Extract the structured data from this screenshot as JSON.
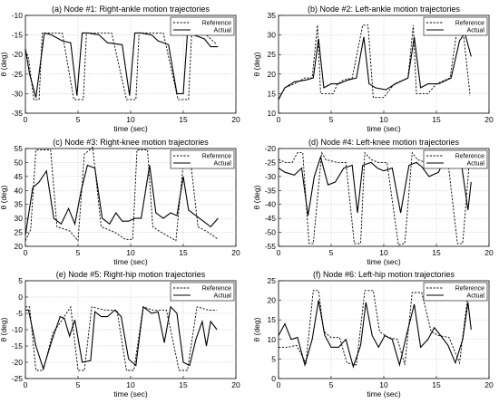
{
  "chart_data": [
    {
      "type": "line",
      "title": "(a) Node #1: Right-ankle motion trajectories",
      "xlabel": "time (sec)",
      "ylabel": "θ (deg)",
      "xlim": [
        0,
        20
      ],
      "ylim": [
        -35,
        -10
      ],
      "xticks": [
        "0",
        "5",
        "10",
        "15",
        "20"
      ],
      "yticks": [
        "-35",
        "-30",
        "-25",
        "-20",
        "-15",
        "-10"
      ],
      "grid": true,
      "legend_position": "top-right",
      "series": [
        {
          "name": "Reference",
          "style": "dashed",
          "x": [
            0,
            0.3,
            0.8,
            1.3,
            1.6,
            2.5,
            3.5,
            4.6,
            5.0,
            5.5,
            5.8,
            7.0,
            8.2,
            9.6,
            10.0,
            10.5,
            10.8,
            12.0,
            13.1,
            14.5,
            15.0,
            15.5,
            15.8,
            17.0,
            18.2
          ],
          "y": [
            -19,
            -21,
            -31.5,
            -31.5,
            -14.5,
            -14.5,
            -14.5,
            -31.5,
            -31.5,
            -31.5,
            -14.5,
            -14.5,
            -14.5,
            -31.5,
            -31.5,
            -31.5,
            -14.5,
            -14.5,
            -14.5,
            -31.5,
            -31.5,
            -31.5,
            -14.5,
            -14.5,
            -17.5
          ]
        },
        {
          "name": "Actual",
          "style": "solid",
          "x": [
            0,
            0.4,
            1.0,
            1.8,
            2.5,
            3.5,
            4.3,
            4.9,
            5.4,
            6.0,
            7.0,
            7.8,
            9.2,
            9.9,
            10.4,
            11.0,
            12.0,
            12.6,
            13.6,
            14.4,
            15.0,
            15.4,
            16.0,
            17.0,
            17.6,
            18.3
          ],
          "y": [
            -18.5,
            -25,
            -31,
            -14.5,
            -15,
            -16.5,
            -17,
            -30.5,
            -14.5,
            -14.5,
            -15,
            -17,
            -17.5,
            -30.5,
            -14.5,
            -14.5,
            -15,
            -16.5,
            -17.5,
            -30,
            -30,
            -14.5,
            -15,
            -16,
            -18,
            -18
          ]
        }
      ]
    },
    {
      "type": "line",
      "title": "(b) Node #2: Left-ankle motion trajectories",
      "xlabel": "time (sec)",
      "ylabel": "θ (deg)",
      "xlim": [
        0,
        20
      ],
      "ylim": [
        10,
        35
      ],
      "xticks": [
        "0",
        "5",
        "10",
        "15",
        "20"
      ],
      "yticks": [
        "10",
        "15",
        "20",
        "25",
        "30",
        "35"
      ],
      "grid": true,
      "legend_position": "top-right",
      "series": [
        {
          "name": "Reference",
          "style": "dashed",
          "x": [
            0,
            0.6,
            1.5,
            2.5,
            3.2,
            3.7,
            4.0,
            5.2,
            5.6,
            6.2,
            7.0,
            8.0,
            8.5,
            9.0,
            10.0,
            11.0,
            12.3,
            12.8,
            13.1,
            14.2,
            15.0,
            16.3,
            17.0,
            17.5,
            18.2
          ],
          "y": [
            13.5,
            16.5,
            17.5,
            19,
            19,
            32.5,
            15,
            15,
            17.5,
            18.5,
            19,
            32.5,
            32.5,
            14,
            14,
            17.5,
            19,
            32.5,
            15,
            15,
            17.5,
            19,
            32,
            32,
            14.5
          ]
        },
        {
          "name": "Actual",
          "style": "solid",
          "x": [
            0,
            0.6,
            1.5,
            2.6,
            3.3,
            3.8,
            4.3,
            5.0,
            5.7,
            6.6,
            7.4,
            8.1,
            8.6,
            9.2,
            10.2,
            11.1,
            12.3,
            12.9,
            13.5,
            14.2,
            15.2,
            16.4,
            17.2,
            17.7,
            18.3
          ],
          "y": [
            13.5,
            16.5,
            18,
            18.5,
            19,
            29,
            16.5,
            17.5,
            17.5,
            18.5,
            19,
            29.5,
            17.5,
            16.5,
            16,
            17.5,
            19,
            29.5,
            16.5,
            17.5,
            17.5,
            19,
            28.5,
            30.5,
            24.5
          ]
        }
      ]
    },
    {
      "type": "line",
      "title": "(c) Node #3: Right-knee motion trajectories",
      "xlabel": "time (sec)",
      "ylabel": "θ (deg)",
      "xlim": [
        0,
        20
      ],
      "ylim": [
        20,
        55
      ],
      "xticks": [
        "0",
        "5",
        "10",
        "15",
        "20"
      ],
      "yticks": [
        "20",
        "25",
        "30",
        "35",
        "40",
        "45",
        "50",
        "55"
      ],
      "grid": true,
      "legend_position": "top-right",
      "series": [
        {
          "name": "Reference",
          "style": "dashed",
          "x": [
            0,
            0.5,
            1.0,
            2.4,
            3.0,
            4.2,
            5.0,
            5.6,
            6.4,
            7.2,
            8.5,
            9.5,
            10.2,
            10.6,
            11.6,
            12.1,
            12.7,
            14.3,
            15.1,
            15.6,
            16.4,
            17.4,
            18.3
          ],
          "y": [
            22,
            26,
            54.5,
            54.5,
            27,
            25.5,
            22,
            53,
            55.5,
            27,
            25,
            22.5,
            22.5,
            54.5,
            54.5,
            27,
            25.5,
            22,
            53.5,
            53.5,
            27,
            25,
            22.5
          ]
        },
        {
          "name": "Actual",
          "style": "solid",
          "x": [
            0,
            0.7,
            1.3,
            2.0,
            2.7,
            3.4,
            4.1,
            4.7,
            5.3,
            5.9,
            6.6,
            7.3,
            8.0,
            8.6,
            9.2,
            9.8,
            10.4,
            11.0,
            11.8,
            12.4,
            13.1,
            13.8,
            14.4,
            15.0,
            15.5,
            16.2,
            16.9,
            17.6,
            18.3
          ],
          "y": [
            24,
            41,
            43,
            47,
            30,
            28,
            33.5,
            28,
            40,
            49,
            48,
            30,
            28,
            32,
            29,
            29,
            30,
            30,
            49,
            32,
            30,
            32,
            31,
            45,
            33,
            31,
            29,
            27,
            30
          ]
        }
      ]
    },
    {
      "type": "line",
      "title": "(d) Node #4: Left-knee motion trajectories",
      "xlabel": "time (sec)",
      "ylabel": "θ (deg)",
      "xlim": [
        0,
        20
      ],
      "ylim": [
        -55,
        -20
      ],
      "xticks": [
        "0",
        "5",
        "10",
        "15",
        "20"
      ],
      "yticks": [
        "-55",
        "-50",
        "-45",
        "-40",
        "-35",
        "-30",
        "-25",
        "-20"
      ],
      "grid": true,
      "legend_position": "top-right",
      "series": [
        {
          "name": "Reference",
          "style": "dashed",
          "x": [
            0,
            0.7,
            1.3,
            1.8,
            2.3,
            2.9,
            3.3,
            4.1,
            4.5,
            5.6,
            6.4,
            7.2,
            7.8,
            8.2,
            8.8,
            9.5,
            10.3,
            11.4,
            12.0,
            12.7,
            13.2,
            14.0,
            15.0,
            16.0,
            17.0,
            17.5,
            18.2
          ],
          "y": [
            -24,
            -25,
            -25,
            -21.5,
            -21.5,
            -54,
            -54,
            -21.5,
            -24,
            -25,
            -25,
            -54,
            -54,
            -21.5,
            -24,
            -25,
            -25,
            -54.5,
            -54,
            -21.5,
            -24,
            -25,
            -25,
            -21.5,
            -54,
            -54,
            -21.5
          ]
        },
        {
          "name": "Actual",
          "style": "solid",
          "x": [
            0,
            0.6,
            1.5,
            2.2,
            2.8,
            3.4,
            4.0,
            4.7,
            5.4,
            6.2,
            7.0,
            7.5,
            8.0,
            8.8,
            9.4,
            10.0,
            10.8,
            11.6,
            12.4,
            13.1,
            13.6,
            14.3,
            15.2,
            16.0,
            16.6,
            17.4,
            18.0,
            18.3
          ],
          "y": [
            -27,
            -28.5,
            -29.5,
            -27,
            -44,
            -30,
            -23,
            -33,
            -32,
            -27,
            -26,
            -43,
            -26,
            -25,
            -27,
            -28,
            -27,
            -43,
            -26,
            -25,
            -26.5,
            -30,
            -28.5,
            -22,
            -27,
            -26,
            -42,
            -32
          ]
        }
      ]
    },
    {
      "type": "line",
      "title": "(e) Node #5: Right-hip motion trajectories",
      "xlabel": "time (sec)",
      "ylabel": "θ (deg)",
      "xlim": [
        0,
        20
      ],
      "ylim": [
        -25,
        5
      ],
      "xticks": [
        "0",
        "5",
        "10",
        "15",
        "20"
      ],
      "yticks": [
        "-25",
        "-20",
        "-15",
        "-10",
        "-5",
        "0",
        "5"
      ],
      "grid": true,
      "legend_position": "top-right",
      "series": [
        {
          "name": "Reference",
          "style": "dashed",
          "x": [
            0,
            0.4,
            1.0,
            1.7,
            2.6,
            3.5,
            4.3,
            5.0,
            5.6,
            6.3,
            7.5,
            8.7,
            9.6,
            10.3,
            11.2,
            12.1,
            13.4,
            14.6,
            15.4,
            16.3,
            17.4,
            18.2
          ],
          "y": [
            -3,
            -3,
            -22.5,
            -22.5,
            -11,
            -7,
            -3,
            -22.5,
            -22.5,
            -3,
            -4,
            -4,
            -22.5,
            -22.5,
            -3,
            -4,
            -4,
            -22.5,
            -22.5,
            -3,
            -4,
            -4
          ]
        },
        {
          "name": "Actual",
          "style": "solid",
          "x": [
            0,
            0.3,
            1.0,
            1.7,
            2.5,
            3.3,
            3.7,
            4.2,
            4.7,
            5.4,
            6.2,
            6.6,
            7.2,
            7.8,
            8.5,
            9.1,
            9.8,
            10.5,
            11.2,
            12.0,
            12.6,
            13.2,
            13.8,
            14.4,
            15.0,
            15.6,
            16.2,
            16.8,
            17.2,
            17.6,
            18.2
          ],
          "y": [
            -4,
            -4,
            -15,
            -22,
            -13.5,
            -6,
            -6.5,
            -12,
            -7,
            -20,
            -19.5,
            -4.5,
            -6,
            -6,
            -4,
            -6,
            -19,
            -21,
            -3,
            -5,
            -4.5,
            -14,
            -3,
            -5,
            -20,
            -21,
            -13,
            -7.5,
            -15,
            -7.5,
            -10
          ]
        }
      ]
    },
    {
      "type": "line",
      "title": "(f) Node #6: Left-hip motion trajectories",
      "xlabel": "time (sec)",
      "ylabel": "θ (deg)",
      "xlim": [
        0,
        20
      ],
      "ylim": [
        0,
        25
      ],
      "xticks": [
        "0",
        "5",
        "10",
        "15",
        "20"
      ],
      "yticks": [
        "0",
        "5",
        "10",
        "15",
        "20",
        "25"
      ],
      "grid": true,
      "legend_position": "top-right",
      "series": [
        {
          "name": "Reference",
          "style": "dashed",
          "x": [
            0,
            0.9,
            1.7,
            2.6,
            3.3,
            3.8,
            4.3,
            5.0,
            5.8,
            6.5,
            7.4,
            8.2,
            9.0,
            9.6,
            10.4,
            11.3,
            12.0,
            12.7,
            13.6,
            14.5,
            15.2,
            16.2,
            17.2,
            18.0,
            18.3
          ],
          "y": [
            8,
            8,
            8.5,
            4,
            22.5,
            22.5,
            12,
            10.5,
            10.5,
            4,
            3.5,
            22.5,
            22.5,
            12,
            10.5,
            10,
            3.5,
            22,
            22,
            12,
            11,
            10.5,
            4,
            21.5,
            21.5
          ]
        },
        {
          "name": "Actual",
          "style": "solid",
          "x": [
            0,
            0.6,
            1.2,
            1.8,
            2.5,
            3.2,
            3.8,
            4.4,
            5.0,
            5.7,
            6.4,
            7.1,
            7.8,
            8.3,
            8.9,
            9.5,
            10.1,
            10.8,
            11.5,
            12.2,
            12.9,
            13.5,
            14.2,
            14.8,
            15.4,
            16.1,
            16.8,
            17.5,
            18.0,
            18.3
          ],
          "y": [
            11,
            14,
            10,
            10.5,
            3.5,
            10,
            20,
            11,
            8,
            8,
            10,
            3,
            8.5,
            19.5,
            11,
            8,
            11,
            10,
            3.5,
            11.5,
            19,
            8,
            10,
            13,
            11,
            8.5,
            4,
            10,
            19.5,
            12.5
          ]
        }
      ]
    }
  ]
}
